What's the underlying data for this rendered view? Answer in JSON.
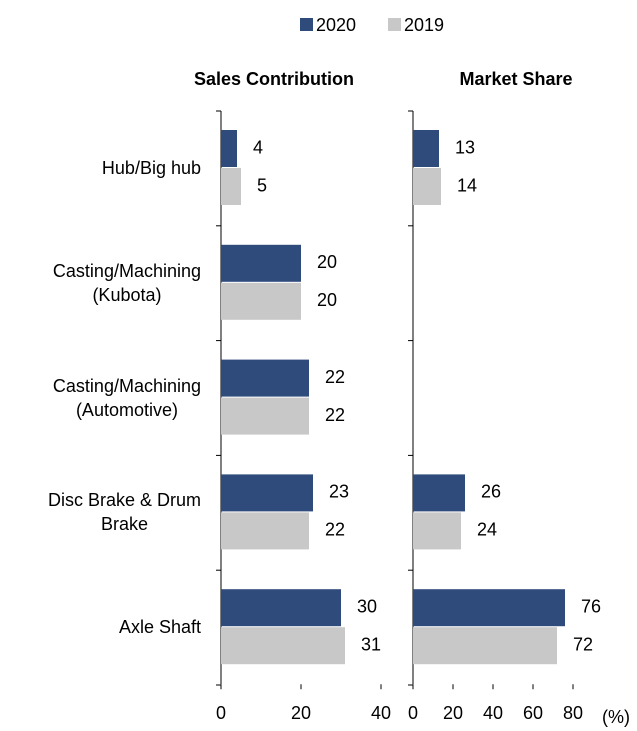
{
  "chart_data": [
    {
      "type": "bar",
      "orientation": "horizontal",
      "title": "Sales Contribution",
      "categories": [
        "Hub/Big hub",
        "Casting/Machining\n(Kubota)",
        "Casting/Machining\n(Automotive)",
        "Disc Brake & Drum\nBrake",
        "Axle Shaft"
      ],
      "series": [
        {
          "name": "2020",
          "color": "#2f4b7c",
          "values": [
            4,
            20,
            22,
            23,
            30
          ]
        },
        {
          "name": "2019",
          "color": "#c8c8c8",
          "values": [
            5,
            20,
            22,
            22,
            31
          ]
        }
      ],
      "xlim": [
        0,
        40
      ],
      "xticks": [
        0,
        20,
        40
      ]
    },
    {
      "type": "bar",
      "orientation": "horizontal",
      "title": "Market Share",
      "x_label": "(%)",
      "series": [
        {
          "name": "2020",
          "color": "#2f4b7c",
          "values": [
            13,
            null,
            null,
            26,
            76
          ]
        },
        {
          "name": "2019",
          "color": "#c8c8c8",
          "values": [
            14,
            null,
            null,
            24,
            72
          ]
        }
      ],
      "xlim": [
        0,
        80
      ],
      "xticks": [
        0,
        20,
        40,
        60,
        80
      ]
    }
  ]
}
